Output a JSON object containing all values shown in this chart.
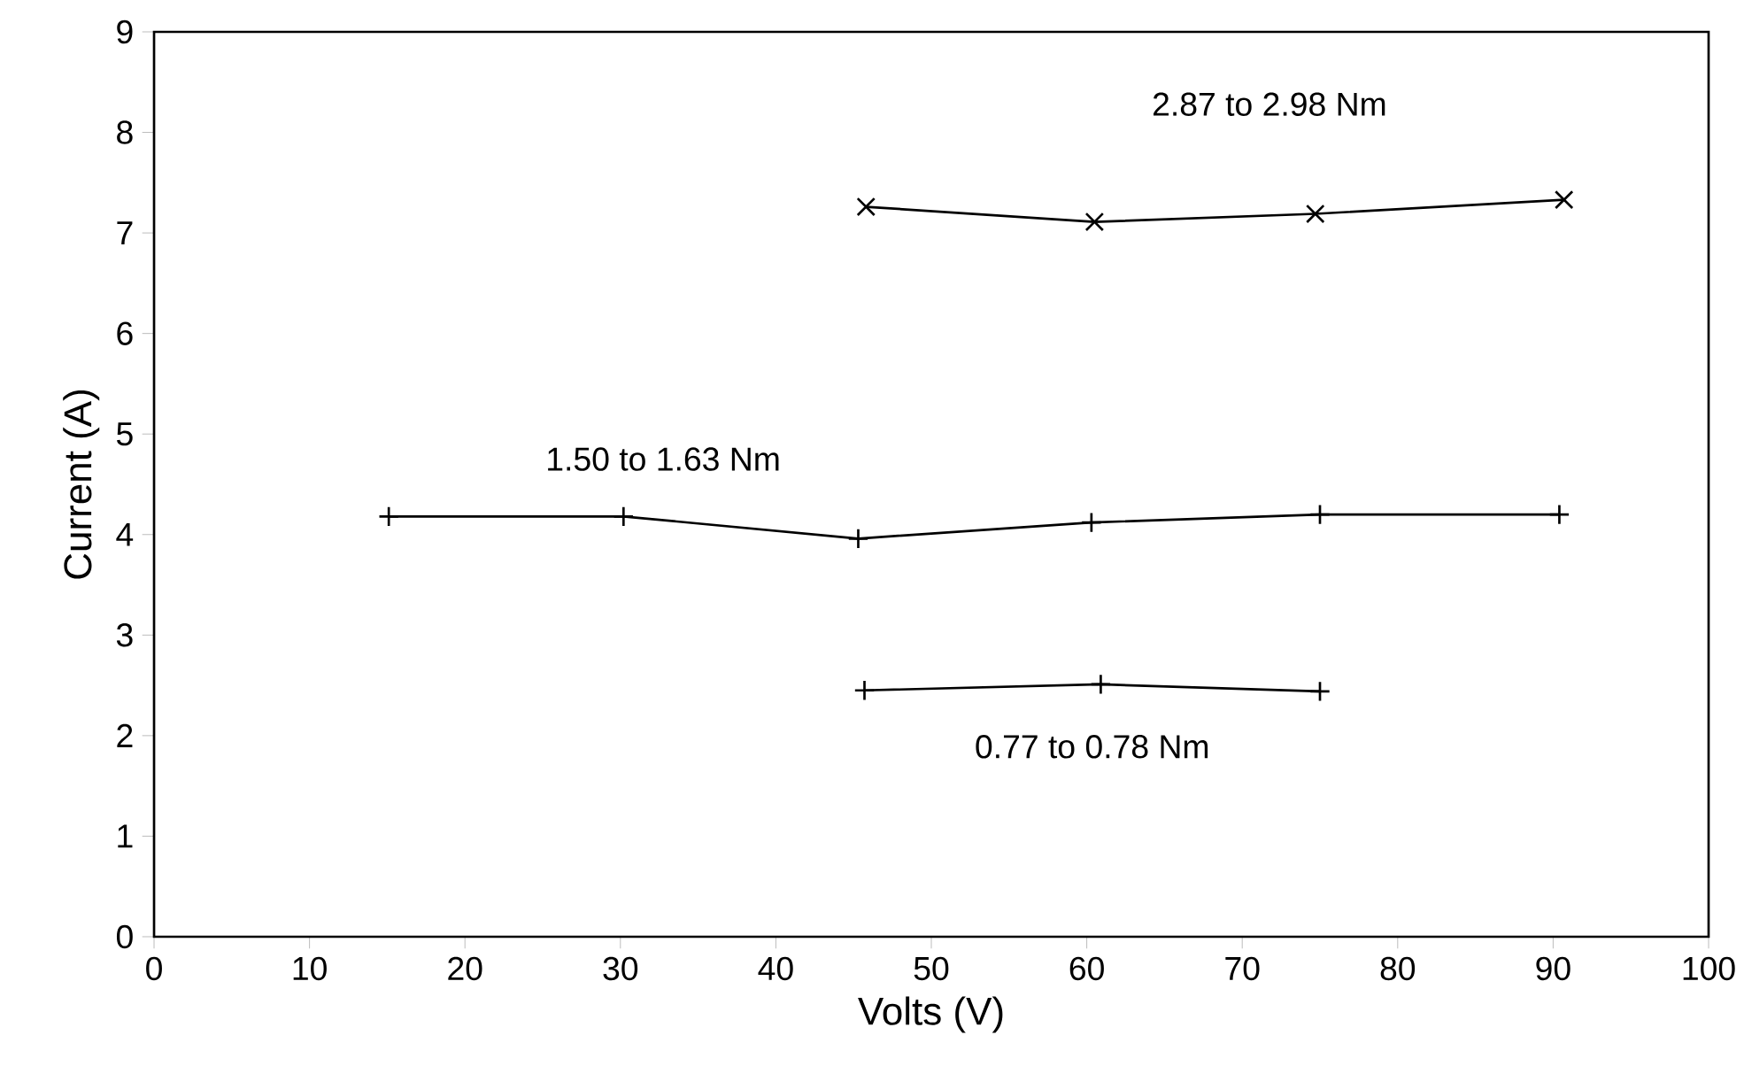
{
  "chart_data": {
    "type": "line",
    "xlabel": "Volts (V)",
    "ylabel": "Current (A)",
    "xlim": [
      0,
      100
    ],
    "xticks": [
      0,
      10,
      20,
      30,
      40,
      50,
      60,
      70,
      80,
      90,
      100
    ],
    "ylim": [
      0,
      9
    ],
    "yticks": [
      0,
      1,
      2,
      3,
      4,
      5,
      6,
      7,
      8,
      9
    ],
    "grid": false,
    "series": [
      {
        "name": "2.87 to 2.98 Nm",
        "color": "#000000",
        "marker": "cross",
        "x": [
          45.8,
          60.5,
          74.7,
          90.7
        ],
        "values": [
          7.26,
          7.11,
          7.19,
          7.33
        ]
      },
      {
        "name": "1.50 to 1.63 Nm",
        "color": "#000000",
        "marker": "plus",
        "x": [
          15.1,
          30.2,
          45.3,
          60.3,
          75.0,
          90.4
        ],
        "values": [
          4.18,
          4.18,
          3.96,
          4.12,
          4.2,
          4.2
        ]
      },
      {
        "name": "0.77 to 0.78 Nm",
        "color": "#000000",
        "marker": "plus",
        "x": [
          45.7,
          60.9,
          75.0
        ],
        "values": [
          2.45,
          2.51,
          2.44
        ]
      }
    ]
  }
}
